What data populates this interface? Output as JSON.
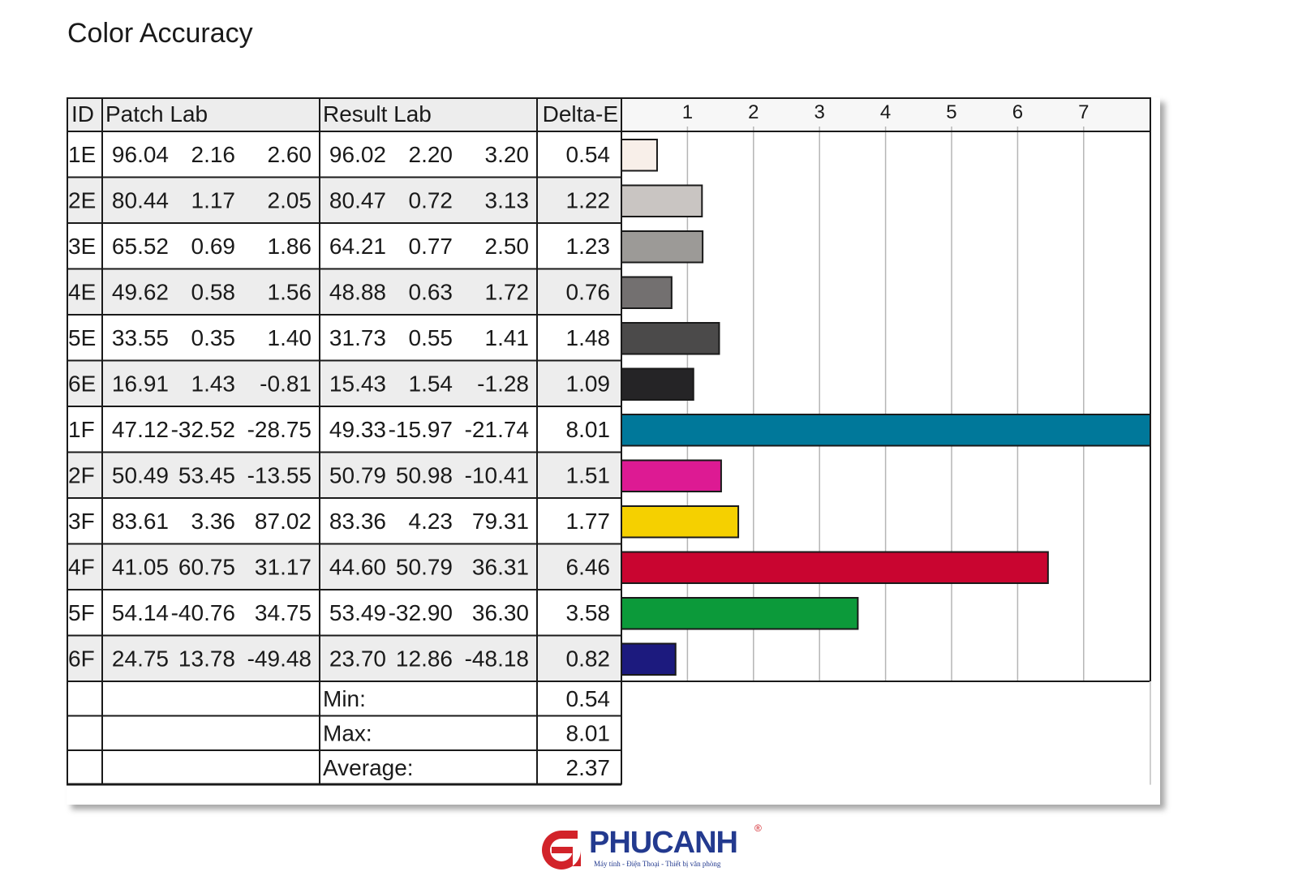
{
  "page": {
    "title": "Color Accuracy"
  },
  "table": {
    "headers": {
      "id": "ID",
      "patch": "Patch Lab",
      "result": "Result Lab",
      "delta": "Delta-E"
    },
    "summary": [
      {
        "label": "Min:",
        "value": "0.54"
      },
      {
        "label": "Max:",
        "value": "8.01"
      },
      {
        "label": "Average:",
        "value": "2.37"
      }
    ]
  },
  "chart_data": {
    "type": "bar",
    "orientation": "horizontal",
    "xlim": [
      0,
      8.01
    ],
    "ticks": [
      "1",
      "2",
      "3",
      "4",
      "5",
      "6",
      "7"
    ],
    "grid": true,
    "rows": [
      {
        "id": "1E",
        "patch": [
          "96.04",
          "2.16",
          "2.60"
        ],
        "result": [
          "96.02",
          "2.20",
          "3.20"
        ],
        "delta": "0.54",
        "value": 0.54,
        "color": "#f8efe9"
      },
      {
        "id": "2E",
        "patch": [
          "80.44",
          "1.17",
          "2.05"
        ],
        "result": [
          "80.47",
          "0.72",
          "3.13"
        ],
        "delta": "1.22",
        "value": 1.22,
        "color": "#c9c5c2"
      },
      {
        "id": "3E",
        "patch": [
          "65.52",
          "0.69",
          "1.86"
        ],
        "result": [
          "64.21",
          "0.77",
          "2.50"
        ],
        "delta": "1.23",
        "value": 1.23,
        "color": "#9c9a97"
      },
      {
        "id": "4E",
        "patch": [
          "49.62",
          "0.58",
          "1.56"
        ],
        "result": [
          "48.88",
          "0.63",
          "1.72"
        ],
        "delta": "0.76",
        "value": 0.76,
        "color": "#737070"
      },
      {
        "id": "5E",
        "patch": [
          "33.55",
          "0.35",
          "1.40"
        ],
        "result": [
          "31.73",
          "0.55",
          "1.41"
        ],
        "delta": "1.48",
        "value": 1.48,
        "color": "#4b4a4a"
      },
      {
        "id": "6E",
        "patch": [
          "16.91",
          "1.43",
          "-0.81"
        ],
        "result": [
          "15.43",
          "1.54",
          "-1.28"
        ],
        "delta": "1.09",
        "value": 1.09,
        "color": "#252426"
      },
      {
        "id": "1F",
        "patch": [
          "47.12",
          "-32.52",
          "-28.75"
        ],
        "result": [
          "49.33",
          "-15.97",
          "-21.74"
        ],
        "delta": "8.01",
        "value": 8.01,
        "color": "#00789a"
      },
      {
        "id": "2F",
        "patch": [
          "50.49",
          "53.45",
          "-13.55"
        ],
        "result": [
          "50.79",
          "50.98",
          "-10.41"
        ],
        "delta": "1.51",
        "value": 1.51,
        "color": "#dd1a93"
      },
      {
        "id": "3F",
        "patch": [
          "83.61",
          "3.36",
          "87.02"
        ],
        "result": [
          "83.36",
          "4.23",
          "79.31"
        ],
        "delta": "1.77",
        "value": 1.77,
        "color": "#f5d000"
      },
      {
        "id": "4F",
        "patch": [
          "41.05",
          "60.75",
          "31.17"
        ],
        "result": [
          "44.60",
          "50.79",
          "36.31"
        ],
        "delta": "6.46",
        "value": 6.46,
        "color": "#c90530"
      },
      {
        "id": "5F",
        "patch": [
          "54.14",
          "-40.76",
          "34.75"
        ],
        "result": [
          "53.49",
          "-32.90",
          "36.30"
        ],
        "delta": "3.58",
        "value": 3.58,
        "color": "#0c9a3a"
      },
      {
        "id": "6F",
        "patch": [
          "24.75",
          "13.78",
          "-49.48"
        ],
        "result": [
          "23.70",
          "12.86",
          "-48.18"
        ],
        "delta": "0.82",
        "value": 0.82,
        "color": "#1c1a7e"
      }
    ]
  },
  "logo": {
    "name": "PHUCANH",
    "mark": "®",
    "tagline": "Máy tính - Điện Thoại - Thiết bị văn phòng",
    "accent": "#d2232a",
    "brand": "#233a8f"
  }
}
